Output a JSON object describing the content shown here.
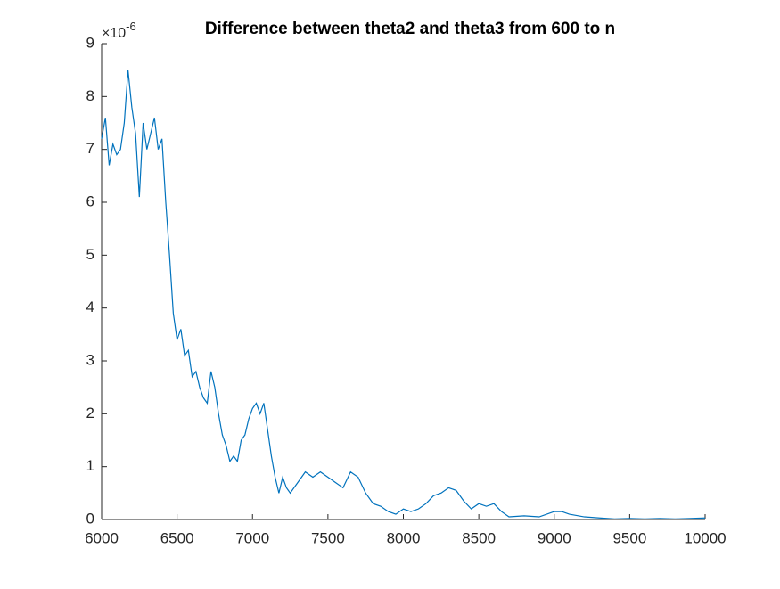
{
  "chart_data": {
    "type": "line",
    "title": "Difference between theta2 and theta3 from 600 to n",
    "y_multiplier": {
      "base": "×10",
      "exponent": "-6"
    },
    "x": [
      6000,
      6025,
      6050,
      6075,
      6100,
      6125,
      6150,
      6175,
      6200,
      6225,
      6250,
      6275,
      6300,
      6325,
      6350,
      6375,
      6400,
      6425,
      6450,
      6475,
      6500,
      6525,
      6550,
      6575,
      6600,
      6625,
      6650,
      6675,
      6700,
      6725,
      6750,
      6775,
      6800,
      6825,
      6850,
      6875,
      6900,
      6925,
      6950,
      6975,
      7000,
      7025,
      7050,
      7075,
      7100,
      7125,
      7150,
      7175,
      7200,
      7225,
      7250,
      7300,
      7350,
      7400,
      7450,
      7500,
      7550,
      7600,
      7650,
      7700,
      7750,
      7800,
      7850,
      7900,
      7950,
      8000,
      8050,
      8100,
      8150,
      8200,
      8250,
      8300,
      8350,
      8400,
      8450,
      8500,
      8550,
      8600,
      8650,
      8700,
      8800,
      8900,
      9000,
      9050,
      9100,
      9200,
      9300,
      9400,
      9500,
      9600,
      9700,
      9800,
      9900,
      10000
    ],
    "series": [
      {
        "color": "#0072bd",
        "values": [
          7.2,
          7.6,
          6.7,
          7.1,
          6.9,
          7.0,
          7.5,
          8.5,
          7.8,
          7.3,
          6.1,
          7.5,
          7.0,
          7.3,
          7.6,
          7.0,
          7.2,
          6.0,
          5.0,
          3.9,
          3.4,
          3.6,
          3.1,
          3.2,
          2.7,
          2.8,
          2.5,
          2.3,
          2.2,
          2.8,
          2.5,
          2.0,
          1.6,
          1.4,
          1.1,
          1.2,
          1.1,
          1.5,
          1.6,
          1.9,
          2.1,
          2.2,
          2.0,
          2.2,
          1.7,
          1.2,
          0.8,
          0.5,
          0.8,
          0.6,
          0.5,
          0.7,
          0.9,
          0.8,
          0.9,
          0.8,
          0.7,
          0.6,
          0.9,
          0.8,
          0.5,
          0.3,
          0.25,
          0.15,
          0.1,
          0.2,
          0.15,
          0.2,
          0.3,
          0.45,
          0.5,
          0.6,
          0.55,
          0.35,
          0.2,
          0.3,
          0.25,
          0.3,
          0.15,
          0.05,
          0.07,
          0.05,
          0.15,
          0.15,
          0.1,
          0.05,
          0.03,
          0.01,
          0.02,
          0.01,
          0.02,
          0.01,
          0.02,
          0.03
        ]
      }
    ],
    "xlim": [
      6000,
      10000
    ],
    "xticks": [
      6000,
      6500,
      7000,
      7500,
      8000,
      8500,
      9000,
      9500,
      10000
    ],
    "ylim": [
      0,
      9
    ],
    "yticks": [
      0,
      1,
      2,
      3,
      4,
      5,
      6,
      7,
      8,
      9
    ]
  }
}
